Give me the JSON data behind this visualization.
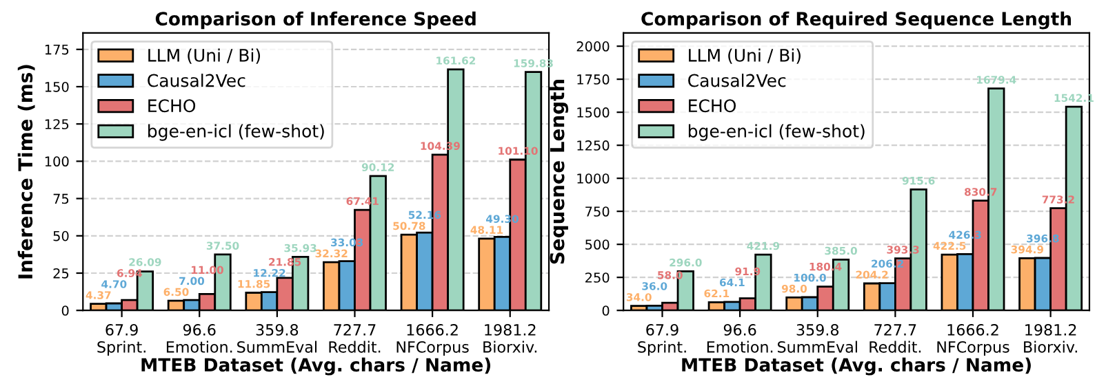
{
  "chart_data": [
    {
      "type": "bar",
      "title": "Comparison of Inference Speed",
      "xlabel": "MTEB Dataset (Avg. chars / Name)",
      "ylabel": "Inference Time (ms)",
      "categories": [
        "67.9\nSprint.",
        "96.6\nEmotion.",
        "359.8\nSummEval",
        "727.7\nReddit.",
        "1666.2\nNFCorpus",
        "1981.2\nBiorxiv."
      ],
      "series": [
        {
          "name": "LLM (Uni / Bi)",
          "color": "#fdb06a",
          "values": [
            4.37,
            6.5,
            11.85,
            32.32,
            50.78,
            48.11
          ],
          "value_labels": [
            "4.37",
            "6.50",
            "11.85",
            "32.32",
            "50.78",
            "48.11"
          ]
        },
        {
          "name": "Causal2Vec",
          "color": "#5ea8d6",
          "values": [
            4.7,
            7.0,
            12.22,
            33.03,
            52.16,
            49.3
          ],
          "value_labels": [
            "4.70",
            "7.00",
            "12.22",
            "33.03",
            "52.16",
            "49.30"
          ]
        },
        {
          "name": "ECHO",
          "color": "#e37474",
          "values": [
            6.94,
            11.0,
            21.85,
            67.41,
            104.39,
            101.1
          ],
          "value_labels": [
            "6.94",
            "11.00",
            "21.85",
            "67.41",
            "104.39",
            "101.10"
          ]
        },
        {
          "name": "bge-en-icl (few-shot)",
          "color": "#9ed6bf",
          "values": [
            26.09,
            37.5,
            35.93,
            90.12,
            161.62,
            159.83
          ],
          "value_labels": [
            "26.09",
            "37.50",
            "35.93",
            "90.12",
            "161.62",
            "159.83"
          ]
        }
      ],
      "ylim": [
        0,
        186
      ],
      "yticks": [
        0,
        25,
        50,
        75,
        100,
        125,
        150,
        175
      ],
      "grid": "y",
      "legend": "top left"
    },
    {
      "type": "bar",
      "title": "Comparison of Required Sequence Length",
      "xlabel": "MTEB Dataset (Avg. chars / Name)",
      "ylabel": "Sequence Length",
      "categories": [
        "67.9\nSprint.",
        "96.6\nEmotion.",
        "359.8\nSummEval",
        "727.7\nReddit.",
        "1666.2\nNFCorpus",
        "1981.2\nBiorxiv."
      ],
      "series": [
        {
          "name": "LLM (Uni / Bi)",
          "color": "#fdb06a",
          "values": [
            34.0,
            62.1,
            98.0,
            204.2,
            422.5,
            394.9
          ],
          "value_labels": [
            "34.0",
            "62.1",
            "98.0",
            "204.2",
            "422.5",
            "394.9"
          ]
        },
        {
          "name": "Causal2Vec",
          "color": "#5ea8d6",
          "values": [
            36.0,
            64.1,
            100.0,
            206.2,
            426.3,
            396.8
          ],
          "value_labels": [
            "36.0",
            "64.1",
            "100.0",
            "206.2",
            "426.3",
            "396.8"
          ]
        },
        {
          "name": "ECHO",
          "color": "#e37474",
          "values": [
            58.0,
            91.9,
            180.4,
            393.3,
            830.7,
            773.2
          ],
          "value_labels": [
            "58.0",
            "91.9",
            "180.4",
            "393.3",
            "830.7",
            "773.2"
          ]
        },
        {
          "name": "bge-en-icl (few-shot)",
          "color": "#9ed6bf",
          "values": [
            296.0,
            421.9,
            385.0,
            915.6,
            1679.4,
            1542.1
          ],
          "value_labels": [
            "296.0",
            "421.9",
            "385.0",
            "915.6",
            "1679.4",
            "1542.1"
          ]
        }
      ],
      "ylim": [
        0,
        2100
      ],
      "yticks": [
        0,
        250,
        500,
        750,
        1000,
        1250,
        1500,
        1750,
        2000
      ],
      "grid": "y",
      "legend": "top left"
    }
  ]
}
